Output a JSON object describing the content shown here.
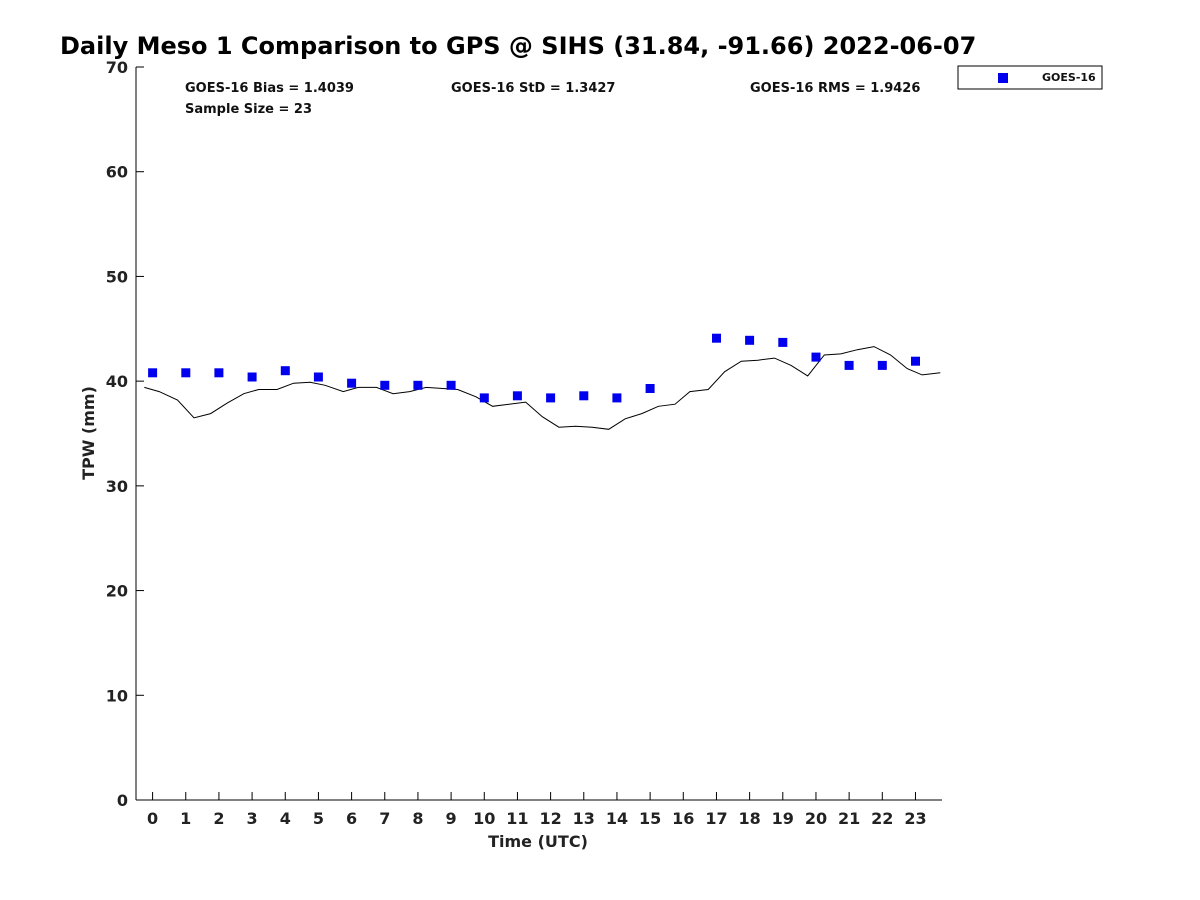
{
  "chart_data": {
    "type": "scatter",
    "title": "Daily Meso 1 Comparison to GPS @ SIHS (31.84, -91.66) 2022-06-07",
    "xlabel": "Time (UTC)",
    "ylabel": "TPW (mm)",
    "xlim": [
      -0.5,
      23.8
    ],
    "ylim": [
      0,
      70
    ],
    "x_ticks": [
      "0",
      "1",
      "2",
      "3",
      "4",
      "5",
      "6",
      "7",
      "8",
      "9",
      "10",
      "11",
      "12",
      "13",
      "14",
      "15",
      "16",
      "17",
      "18",
      "19",
      "20",
      "21",
      "22",
      "23"
    ],
    "y_ticks": [
      "0",
      "10",
      "20",
      "30",
      "40",
      "50",
      "60",
      "70"
    ],
    "grid": false,
    "legend_position": "top-right, outside",
    "stats": {
      "bias": "GOES-16 Bias = 1.4039",
      "std": "GOES-16 StD = 1.3427",
      "rms": "GOES-16 RMS = 1.9426",
      "sample": "Sample Size = 23"
    },
    "series": [
      {
        "name": "GOES-16",
        "kind": "scatter",
        "marker": "square",
        "color": "#0000ee",
        "x": [
          0,
          1,
          2,
          3,
          4,
          5,
          6,
          7,
          8,
          9,
          10,
          11,
          12,
          13,
          14,
          15,
          17,
          18,
          19,
          20,
          21,
          22,
          23
        ],
        "y": [
          40.8,
          40.8,
          40.8,
          40.4,
          41.0,
          40.4,
          39.8,
          39.6,
          39.6,
          39.6,
          38.4,
          38.6,
          38.4,
          38.6,
          38.4,
          39.3,
          44.1,
          43.9,
          43.7,
          42.3,
          41.5,
          41.5,
          41.9
        ]
      },
      {
        "kind": "line",
        "color": "#000000",
        "x": [
          -0.25,
          0.2,
          0.75,
          1.25,
          1.75,
          2.25,
          2.75,
          3.2,
          3.75,
          4.25,
          4.75,
          5.2,
          5.75,
          6.2,
          6.75,
          7.25,
          7.75,
          8.25,
          8.75,
          9.2,
          9.75,
          10.25,
          10.75,
          11.25,
          11.75,
          12.25,
          12.75,
          13.25,
          13.75,
          14.25,
          14.75,
          15.25,
          15.75,
          16.2,
          16.75,
          17.25,
          17.75,
          18.25,
          18.75,
          19.25,
          19.75,
          20.25,
          20.75,
          21.25,
          21.75,
          22.25,
          22.75,
          23.2,
          23.75
        ],
        "y": [
          39.4,
          39.0,
          38.2,
          36.5,
          36.9,
          37.9,
          38.8,
          39.2,
          39.2,
          39.8,
          39.9,
          39.6,
          39.0,
          39.4,
          39.4,
          38.8,
          39.0,
          39.4,
          39.3,
          39.2,
          38.5,
          37.6,
          37.8,
          38.0,
          36.6,
          35.6,
          35.7,
          35.6,
          35.4,
          36.4,
          36.9,
          37.6,
          37.8,
          39.0,
          39.2,
          40.9,
          41.9,
          42.0,
          42.2,
          41.5,
          40.5,
          42.5,
          42.6,
          43.0,
          43.3,
          42.5,
          41.2,
          40.6,
          40.8
        ]
      }
    ]
  }
}
